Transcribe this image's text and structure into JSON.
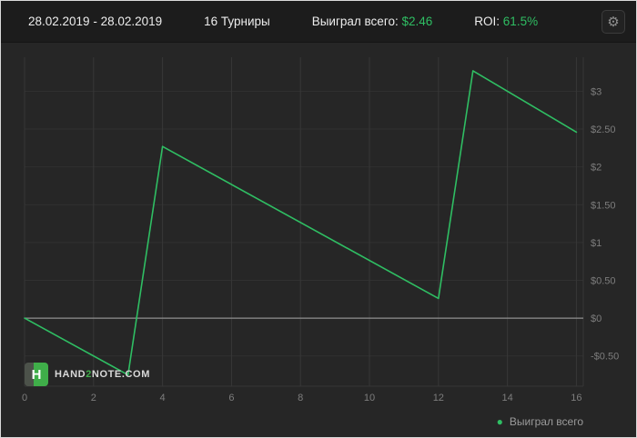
{
  "topbar": {
    "date_range": "28.02.2019 - 28.02.2019",
    "tournaments": "16 Турниры",
    "won_label": "Выиграл всего:",
    "won_value": "$2.46",
    "roi_label": "ROI:",
    "roi_value": "61.5%",
    "gear_glyph": "⚙"
  },
  "legend": {
    "marker_glyph": "●",
    "label": "Выиграл всего"
  },
  "logo": {
    "square_letter": "H",
    "text_parts": [
      "HAND",
      "2",
      "NOTE.COM"
    ]
  },
  "colors": {
    "accent_green": "#2fbe63",
    "background": "#262626",
    "topbar_bg": "#1c1c1c",
    "grid": "#373737",
    "grid_horizontal": "#303030",
    "zero_line": "#8f8f8f",
    "axis_text": "#7d7d7d"
  },
  "chart_data": {
    "type": "line",
    "title": "",
    "xlabel": "",
    "ylabel": "",
    "grid": true,
    "zero_line": true,
    "legend_position": "bottom-right",
    "xlim": [
      0,
      16.2
    ],
    "ylim": [
      -0.9,
      3.45
    ],
    "x_ticks": [
      0,
      2,
      4,
      6,
      8,
      10,
      12,
      14,
      16
    ],
    "y_ticks": [
      {
        "value": 3,
        "label": "$3"
      },
      {
        "value": 2.5,
        "label": "$2.50"
      },
      {
        "value": 2,
        "label": "$2"
      },
      {
        "value": 1.5,
        "label": "$1.50"
      },
      {
        "value": 1,
        "label": "$1"
      },
      {
        "value": 0.5,
        "label": "$0.50"
      },
      {
        "value": 0,
        "label": "$0"
      },
      {
        "value": -0.5,
        "label": "-$0.50"
      }
    ],
    "series": [
      {
        "name": "Выиграл всего",
        "points": [
          {
            "x": 0,
            "y": 0
          },
          {
            "x": 3,
            "y": -0.75
          },
          {
            "x": 4,
            "y": 2.27
          },
          {
            "x": 12,
            "y": 0.26
          },
          {
            "x": 13,
            "y": 3.27
          },
          {
            "x": 16,
            "y": 2.46
          }
        ]
      }
    ]
  }
}
